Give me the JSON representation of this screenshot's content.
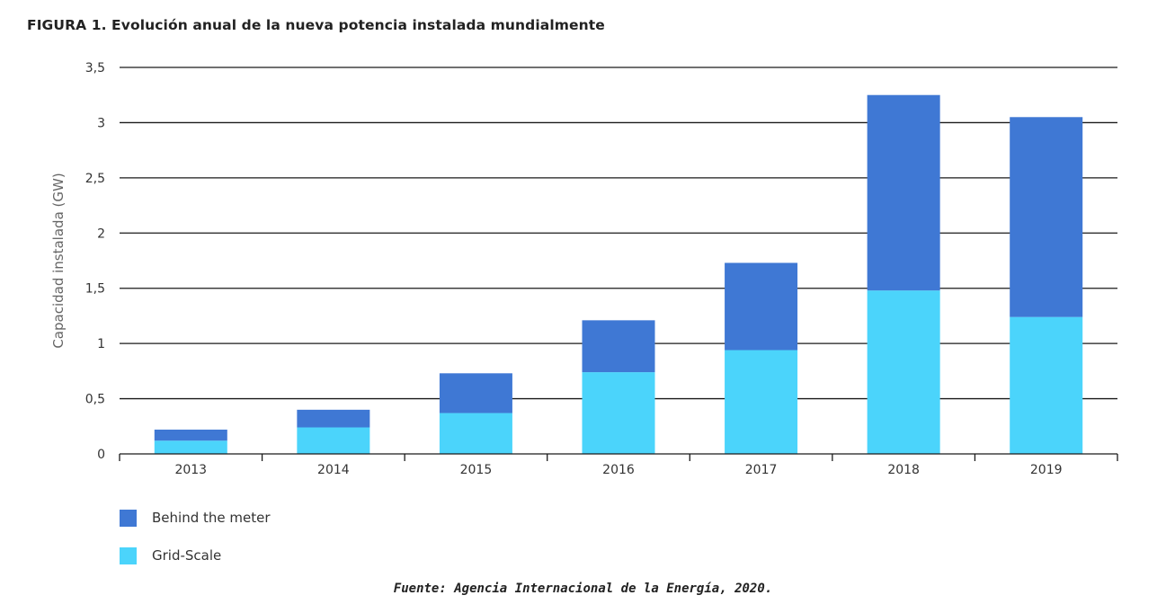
{
  "figure_title": "FIGURA 1. Evolución anual de la nueva potencia instalada mundialmente",
  "source_note": "Fuente: Agencia Internacional de la Energía, 2020.",
  "colors": {
    "behind_the_meter": "#3F78D4",
    "grid_scale": "#4BD4FB",
    "gridline": "#1a1a1a",
    "axis_text": "#333333"
  },
  "chart_data": {
    "type": "bar",
    "stacked": true,
    "title": "FIGURA 1. Evolución anual de la nueva potencia instalada mundialmente",
    "xlabel": "",
    "ylabel": "Capacidad instalada (GW)",
    "ylim": [
      0,
      3.5
    ],
    "yticks": [
      0,
      0.5,
      1,
      1.5,
      2,
      2.5,
      3,
      3.5
    ],
    "ytick_labels": [
      "0",
      "0,5",
      "1",
      "1,5",
      "2",
      "2,5",
      "3",
      "3,5"
    ],
    "categories": [
      "2013",
      "2014",
      "2015",
      "2016",
      "2017",
      "2018",
      "2019"
    ],
    "series": [
      {
        "name": "Grid-Scale",
        "color": "#4BD4FB",
        "values": [
          0.12,
          0.24,
          0.37,
          0.74,
          0.94,
          1.48,
          1.24
        ]
      },
      {
        "name": "Behind the meter",
        "color": "#3F78D4",
        "values": [
          0.1,
          0.16,
          0.36,
          0.47,
          0.79,
          1.77,
          1.81
        ]
      }
    ],
    "legend": {
      "position": "bottom-left",
      "items": [
        "Behind the meter",
        "Grid-Scale"
      ]
    },
    "grid": true
  }
}
